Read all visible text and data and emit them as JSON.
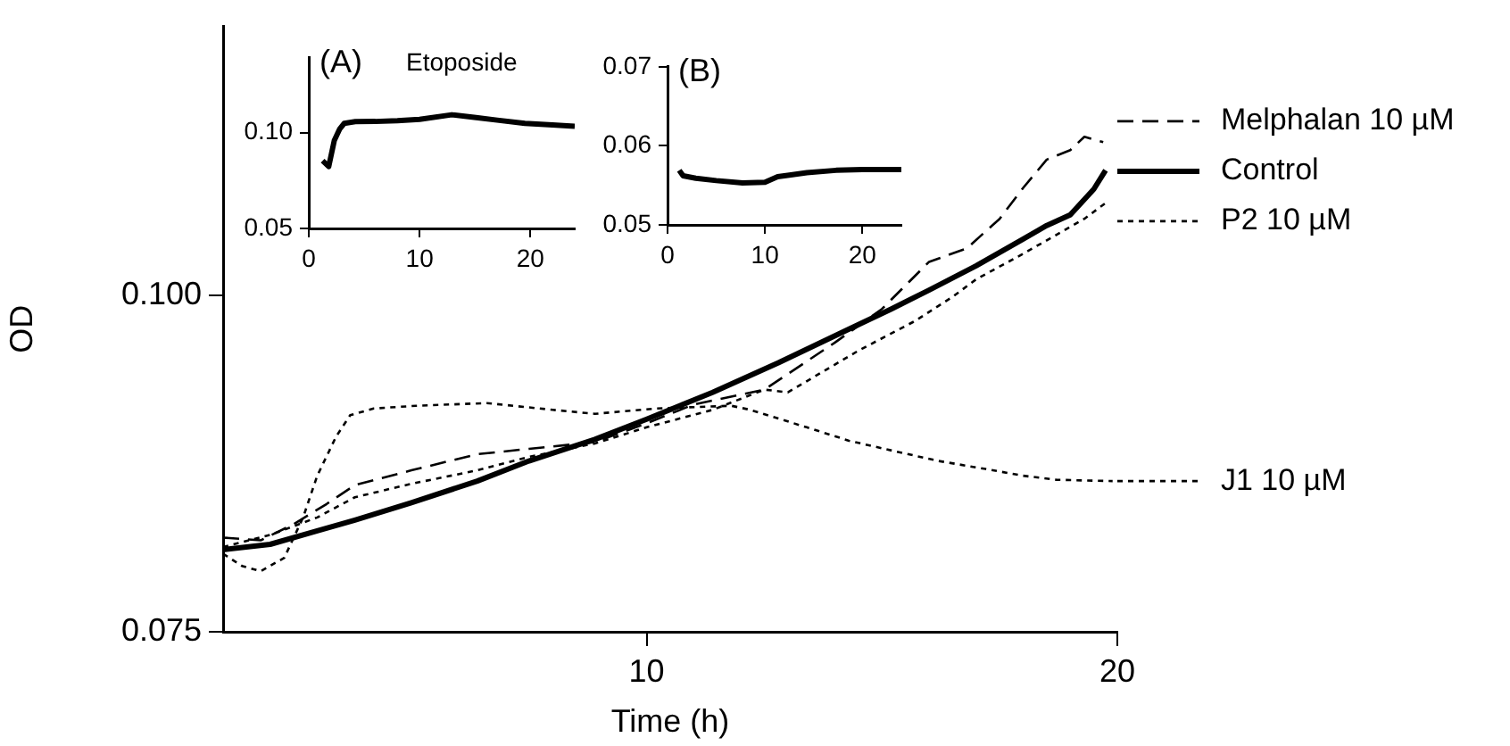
{
  "chart_data": [
    {
      "type": "line",
      "xlabel": "Time (h)",
      "ylabel": "OD",
      "xlim": [
        1,
        20
      ],
      "ylim": [
        0.075,
        0.12
      ],
      "xticks": [
        10,
        20
      ],
      "yticks": [
        0.075,
        {
          "value": 0.1,
          "label": "0.100"
        }
      ],
      "grid": false,
      "legend": "right",
      "marker": "none",
      "series": [
        {
          "name": "Melphalan 10 µM",
          "color": "#000000",
          "line_style": "dashed",
          "x": [
            1,
            1.8,
            2.5,
            3.2,
            3.8,
            5,
            6.4,
            7.5,
            8.9,
            10,
            11,
            12.5,
            14,
            15,
            16,
            16.8,
            17.5,
            18,
            18.5,
            19,
            19.3,
            19.7
          ],
          "values": [
            0.082,
            0.0818,
            0.083,
            0.0845,
            0.0859,
            0.087,
            0.0882,
            0.0886,
            0.0891,
            0.0905,
            0.0919,
            0.093,
            0.0965,
            0.099,
            0.1025,
            0.1035,
            0.1057,
            0.108,
            0.1101,
            0.1108,
            0.1118,
            0.1114
          ]
        },
        {
          "name": "Control",
          "color": "#000000",
          "line_style": "solid",
          "x": [
            1,
            2,
            3,
            3.8,
            5,
            6.4,
            7.5,
            8.9,
            10,
            11.4,
            12.8,
            14.3,
            15.2,
            16,
            17,
            18,
            18.5,
            19,
            19.5,
            19.75
          ],
          "values": [
            0.0811,
            0.0815,
            0.0825,
            0.0833,
            0.0846,
            0.0862,
            0.0877,
            0.0893,
            0.0908,
            0.0928,
            0.095,
            0.0975,
            0.099,
            0.1004,
            0.1022,
            0.1042,
            0.1052,
            0.106,
            0.1079,
            0.1093
          ]
        },
        {
          "name": "P2 10 µM",
          "color": "#000000",
          "line_style": "dotted",
          "x": [
            1,
            2,
            3,
            3.8,
            5,
            6.4,
            7.5,
            8.9,
            10,
            11.4,
            12.5,
            13,
            14.5,
            15.7,
            16.5,
            17,
            18,
            18.7,
            19.3,
            19.8
          ],
          "values": [
            0.0813,
            0.0822,
            0.0835,
            0.085,
            0.086,
            0.087,
            0.088,
            0.089,
            0.0902,
            0.0915,
            0.093,
            0.0928,
            0.0959,
            0.0981,
            0.0999,
            0.1012,
            0.1031,
            0.1045,
            0.1057,
            0.107
          ]
        },
        {
          "name": "J1 10 µM",
          "color": "#000000",
          "line_style": "dotted",
          "x": [
            1,
            1.4,
            1.8,
            2.3,
            2.7,
            3,
            3.4,
            3.7,
            4.2,
            5.1,
            6.6,
            8,
            8.9,
            10.2,
            11.8,
            12.2,
            13.4,
            14.3,
            15.3,
            16.2,
            17.2,
            18,
            18.7,
            19.9
          ],
          "values": [
            0.0808,
            0.0799,
            0.0795,
            0.0805,
            0.0835,
            0.0866,
            0.0895,
            0.0911,
            0.0916,
            0.0918,
            0.092,
            0.0915,
            0.0912,
            0.0916,
            0.0918,
            0.0915,
            0.0902,
            0.0892,
            0.0884,
            0.0877,
            0.0871,
            0.0866,
            0.0863,
            0.0862
          ]
        }
      ]
    },
    {
      "type": "line",
      "title": "Etoposide",
      "annotations": [
        "(A)"
      ],
      "xlim": [
        0,
        24
      ],
      "ylim": [
        0.05,
        0.139
      ],
      "xticks": [
        0,
        10,
        20
      ],
      "yticks": [
        0.05,
        {
          "value": 0.1,
          "label": "0.10"
        }
      ],
      "grid": false,
      "marker": "none",
      "series": [
        {
          "color": "#000000",
          "line_style": "solid",
          "x": [
            1.25,
            1.8,
            2.3,
            2.8,
            3.2,
            4.2,
            6,
            8,
            10,
            12.9,
            15.1,
            17,
            19.5,
            22,
            24
          ],
          "values": [
            0.0853,
            0.0823,
            0.0958,
            0.102,
            0.1048,
            0.1057,
            0.1058,
            0.1062,
            0.1069,
            0.1093,
            0.1078,
            0.1065,
            0.1048,
            0.104,
            0.1033
          ]
        }
      ]
    },
    {
      "type": "line",
      "annotations": [
        "(B)"
      ],
      "xlim": [
        0,
        24
      ],
      "ylim": [
        0.05,
        0.07
      ],
      "xticks": [
        0,
        10,
        20
      ],
      "yticks": [
        0.05,
        0.06,
        0.07
      ],
      "grid": false,
      "marker": "none",
      "series": [
        {
          "color": "#000000",
          "line_style": "solid",
          "x": [
            1.2,
            1.6,
            2.9,
            5,
            7.7,
            10,
            11.3,
            12.5,
            14.3,
            17.3,
            20,
            24
          ],
          "values": [
            0.0569,
            0.0562,
            0.0559,
            0.0556,
            0.0553,
            0.0554,
            0.0561,
            0.0563,
            0.0566,
            0.0569,
            0.057,
            0.057
          ]
        }
      ]
    }
  ]
}
